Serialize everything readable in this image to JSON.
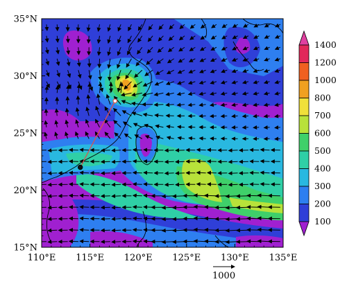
{
  "map": {
    "lon_range": [
      110,
      135
    ],
    "lat_range": [
      15,
      35
    ],
    "x_ticks": [
      {
        "value": 110,
        "label": "110°E"
      },
      {
        "value": 115,
        "label": "115°E"
      },
      {
        "value": 120,
        "label": "120°E"
      },
      {
        "value": 125,
        "label": "125°E"
      },
      {
        "value": 130,
        "label": "130°E"
      },
      {
        "value": 135,
        "label": "135°E"
      }
    ],
    "y_ticks": [
      {
        "value": 35,
        "label": "35°N"
      },
      {
        "value": 30,
        "label": "30°N"
      },
      {
        "value": 25,
        "label": "25°N"
      },
      {
        "value": 20,
        "label": "20°N"
      },
      {
        "value": 15,
        "label": "15°N"
      }
    ],
    "reference_vector": {
      "value": 1000,
      "label": "1000"
    },
    "track": {
      "start": {
        "lon": 114.0,
        "lat": 22.0
      },
      "end": {
        "lon": 117.6,
        "lat": 27.8
      },
      "color": "#d9534f"
    }
  },
  "colorbar": {
    "levels": [
      100,
      200,
      300,
      400,
      500,
      600,
      700,
      800,
      1000,
      1200,
      1400
    ],
    "labels": [
      "100",
      "200",
      "300",
      "400",
      "500",
      "600",
      "700",
      "800",
      "1000",
      "1200",
      "1400"
    ],
    "colors": [
      "#a020d0",
      "#2f3fd8",
      "#2e7ff0",
      "#29b8e0",
      "#2fcfa6",
      "#3fd06a",
      "#b8e23a",
      "#f0e03a",
      "#f0a020",
      "#f06020",
      "#e2285a",
      "#e040a0"
    ]
  }
}
